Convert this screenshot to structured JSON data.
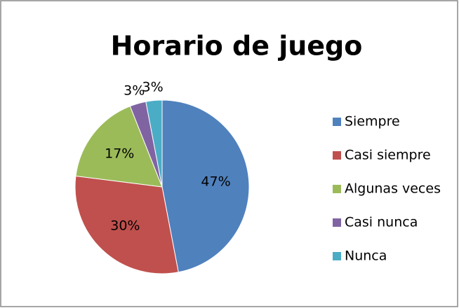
{
  "chart_data": {
    "type": "pie",
    "title": "Horario de juego",
    "categories": [
      "Siempre",
      "Casi siempre",
      "Algunas veces",
      "Casi nunca",
      "Nunca"
    ],
    "values": [
      47,
      30,
      17,
      3,
      3
    ],
    "value_labels": [
      "47%",
      "30%",
      "17%",
      "3%",
      "3%"
    ],
    "colors": [
      "#4F81BD",
      "#C0504D",
      "#9BBB59",
      "#8064A2",
      "#4BACC6"
    ],
    "legend": "right"
  }
}
